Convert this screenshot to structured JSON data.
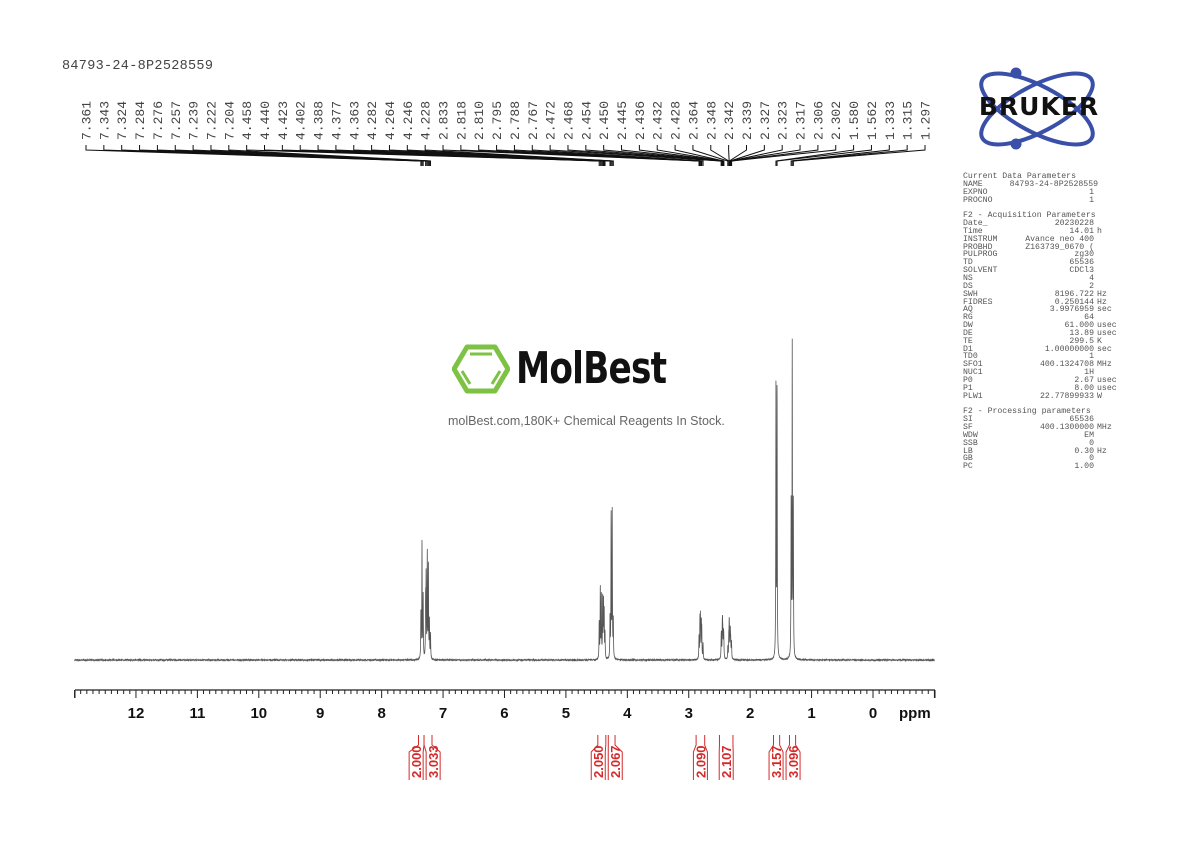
{
  "title": "84793-24-8P2528559",
  "watermark": {
    "brand": "MolBest",
    "tagline": "molBest.com,180K+ Chemical Reagents In Stock.",
    "color": "#7dc242"
  },
  "logo": {
    "text": "BRUKER",
    "color": "#3a4fa8"
  },
  "chart_data": {
    "type": "line",
    "xlabel": "ppm",
    "xlim": [
      13.0,
      -1.0
    ],
    "x_ticks": [
      "12",
      "11",
      "10",
      "9",
      "8",
      "7",
      "6",
      "5",
      "4",
      "3",
      "2",
      "1",
      "0"
    ],
    "y_units": "relative intensity (tallest peak = 100)",
    "grid": false,
    "spectrum_color": "#555555",
    "integral_color": "#d42a2a",
    "peaks": [
      {
        "ppm": 7.361,
        "label": "7.361",
        "i": 15
      },
      {
        "ppm": 7.343,
        "label": "7.343",
        "i": 38
      },
      {
        "ppm": 7.324,
        "label": "7.324",
        "i": 20
      },
      {
        "ppm": 7.284,
        "label": "7.284",
        "i": 18
      },
      {
        "ppm": 7.276,
        "label": "7.276",
        "i": 25
      },
      {
        "ppm": 7.257,
        "label": "7.257",
        "i": 34
      },
      {
        "ppm": 7.239,
        "label": "7.239",
        "i": 30
      },
      {
        "ppm": 7.222,
        "label": "7.222",
        "i": 12
      },
      {
        "ppm": 7.204,
        "label": "7.204",
        "i": 8
      },
      {
        "ppm": 4.458,
        "label": "4.458",
        "i": 12
      },
      {
        "ppm": 4.44,
        "label": "4.440",
        "i": 23
      },
      {
        "ppm": 4.423,
        "label": "4.423",
        "i": 20
      },
      {
        "ppm": 4.402,
        "label": "4.402",
        "i": 19
      },
      {
        "ppm": 4.388,
        "label": "4.388",
        "i": 18
      },
      {
        "ppm": 4.377,
        "label": "4.377",
        "i": 15
      },
      {
        "ppm": 4.363,
        "label": "4.363",
        "i": 8
      },
      {
        "ppm": 4.282,
        "label": "4.282",
        "i": 13
      },
      {
        "ppm": 4.264,
        "label": "4.264",
        "i": 46
      },
      {
        "ppm": 4.246,
        "label": "4.246",
        "i": 47
      },
      {
        "ppm": 4.228,
        "label": "4.228",
        "i": 12
      },
      {
        "ppm": 2.833,
        "label": "2.833",
        "i": 7
      },
      {
        "ppm": 2.818,
        "label": "2.818",
        "i": 12
      },
      {
        "ppm": 2.81,
        "label": "2.810",
        "i": 13
      },
      {
        "ppm": 2.795,
        "label": "2.795",
        "i": 11
      },
      {
        "ppm": 2.788,
        "label": "2.788",
        "i": 9
      },
      {
        "ppm": 2.767,
        "label": "2.767",
        "i": 5
      },
      {
        "ppm": 2.472,
        "label": "2.472",
        "i": 5
      },
      {
        "ppm": 2.468,
        "label": "2.468",
        "i": 6
      },
      {
        "ppm": 2.454,
        "label": "2.454",
        "i": 8
      },
      {
        "ppm": 2.45,
        "label": "2.450",
        "i": 8
      },
      {
        "ppm": 2.445,
        "label": "2.445",
        "i": 6
      },
      {
        "ppm": 2.436,
        "label": "2.436",
        "i": 5
      },
      {
        "ppm": 2.432,
        "label": "2.432",
        "i": 5
      },
      {
        "ppm": 2.428,
        "label": "2.428",
        "i": 4
      },
      {
        "ppm": 2.364,
        "label": "2.364",
        "i": 4
      },
      {
        "ppm": 2.348,
        "label": "2.348",
        "i": 6
      },
      {
        "ppm": 2.342,
        "label": "2.342",
        "i": 7
      },
      {
        "ppm": 2.339,
        "label": "2.339",
        "i": 7
      },
      {
        "ppm": 2.327,
        "label": "2.327",
        "i": 6
      },
      {
        "ppm": 2.323,
        "label": "2.323",
        "i": 6
      },
      {
        "ppm": 2.317,
        "label": "2.317",
        "i": 5
      },
      {
        "ppm": 2.306,
        "label": "2.306",
        "i": 4
      },
      {
        "ppm": 2.302,
        "label": "2.302",
        "i": 3
      },
      {
        "ppm": 1.58,
        "label": "1.580",
        "i": 89
      },
      {
        "ppm": 1.562,
        "label": "1.562",
        "i": 87
      },
      {
        "ppm": 1.333,
        "label": "1.333",
        "i": 49
      },
      {
        "ppm": 1.315,
        "label": "1.315",
        "i": 100
      },
      {
        "ppm": 1.297,
        "label": "1.297",
        "i": 49
      }
    ],
    "integrals": [
      {
        "range": [
          7.4,
          7.31
        ],
        "value": "2.000"
      },
      {
        "range": [
          7.31,
          7.18
        ],
        "value": "3.033"
      },
      {
        "range": [
          4.48,
          4.35
        ],
        "value": "2.050"
      },
      {
        "range": [
          4.31,
          4.2
        ],
        "value": "2.067"
      },
      {
        "range": [
          2.88,
          2.74
        ],
        "value": "2.090"
      },
      {
        "range": [
          2.5,
          2.28
        ],
        "value": "2.107"
      },
      {
        "range": [
          1.62,
          1.52
        ],
        "value": "3.157"
      },
      {
        "range": [
          1.36,
          1.26
        ],
        "value": "3.096"
      }
    ]
  },
  "params": {
    "sections": [
      {
        "header": "Current Data Parameters",
        "rows": [
          {
            "k": "NAME",
            "v": "84793-24-8P2528559",
            "u": ""
          },
          {
            "k": "EXPNO",
            "v": "1",
            "u": ""
          },
          {
            "k": "PROCNO",
            "v": "1",
            "u": ""
          }
        ]
      },
      {
        "header": "F2 - Acquisition Parameters",
        "rows": [
          {
            "k": "Date_",
            "v": "20230228",
            "u": ""
          },
          {
            "k": "Time",
            "v": "14.01",
            "u": "h"
          },
          {
            "k": "INSTRUM",
            "v": "Avance neo 400",
            "u": ""
          },
          {
            "k": "PROBHD",
            "v": "Z163739_0670 (",
            "u": ""
          },
          {
            "k": "PULPROG",
            "v": "zg30",
            "u": ""
          },
          {
            "k": "TD",
            "v": "65536",
            "u": ""
          },
          {
            "k": "SOLVENT",
            "v": "CDCl3",
            "u": ""
          },
          {
            "k": "NS",
            "v": "4",
            "u": ""
          },
          {
            "k": "DS",
            "v": "2",
            "u": ""
          },
          {
            "k": "SWH",
            "v": "8196.722",
            "u": "Hz"
          },
          {
            "k": "FIDRES",
            "v": "0.250144",
            "u": "Hz"
          },
          {
            "k": "AQ",
            "v": "3.9976959",
            "u": "sec"
          },
          {
            "k": "RG",
            "v": "64",
            "u": ""
          },
          {
            "k": "DW",
            "v": "61.000",
            "u": "usec"
          },
          {
            "k": "DE",
            "v": "13.89",
            "u": "usec"
          },
          {
            "k": "TE",
            "v": "299.5",
            "u": "K"
          },
          {
            "k": "D1",
            "v": "1.00000000",
            "u": "sec"
          },
          {
            "k": "TD0",
            "v": "1",
            "u": ""
          },
          {
            "k": "SFO1",
            "v": "400.1324708",
            "u": "MHz"
          },
          {
            "k": "NUC1",
            "v": "1H",
            "u": ""
          },
          {
            "k": "P0",
            "v": "2.67",
            "u": "usec"
          },
          {
            "k": "P1",
            "v": "8.00",
            "u": "usec"
          },
          {
            "k": "PLW1",
            "v": "22.77899933",
            "u": "W"
          }
        ]
      },
      {
        "header": "F2 - Processing parameters",
        "rows": [
          {
            "k": "SI",
            "v": "65536",
            "u": ""
          },
          {
            "k": "SF",
            "v": "400.1300000",
            "u": "MHz"
          },
          {
            "k": "WDW",
            "v": "EM",
            "u": ""
          },
          {
            "k": "SSB",
            "v": "0",
            "u": ""
          },
          {
            "k": "LB",
            "v": "0.30",
            "u": "Hz"
          },
          {
            "k": "GB",
            "v": "0",
            "u": ""
          },
          {
            "k": "PC",
            "v": "1.00",
            "u": ""
          }
        ]
      }
    ]
  }
}
